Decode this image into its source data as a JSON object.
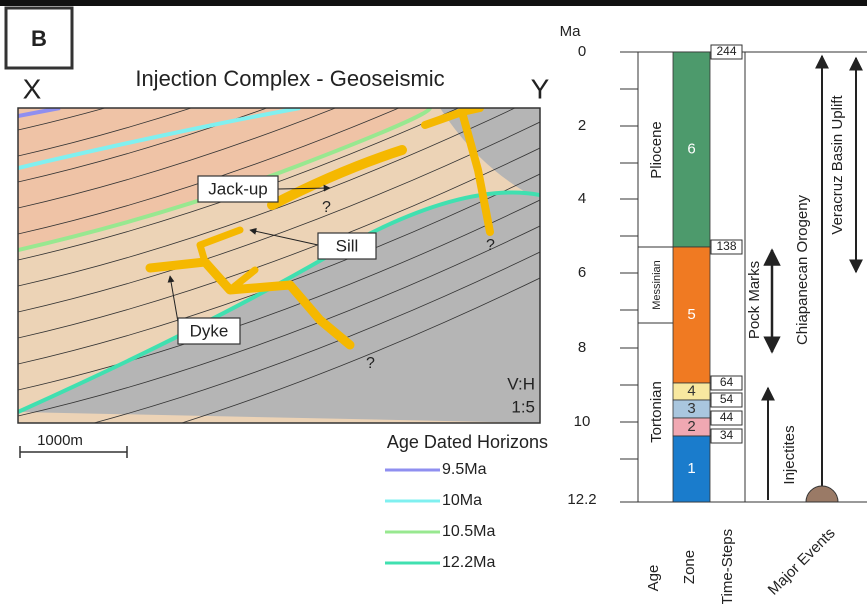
{
  "panel": "B",
  "title": "Injection Complex - Geoseismic",
  "section": {
    "left_end": "X",
    "right_end": "Y",
    "labels": {
      "jackup": "Jack-up",
      "sill": "Sill",
      "dyke": "Dyke"
    },
    "question_mark": "?",
    "ratio_label": "V:H",
    "ratio": "1:5",
    "scale_bar": "1000m"
  },
  "legend": {
    "title": "Age Dated Horizons",
    "items": [
      {
        "label": "9.5Ma",
        "color": "#8f8ff0"
      },
      {
        "label": "10Ma",
        "color": "#80f0f0"
      },
      {
        "label": "10.5Ma",
        "color": "#98e890"
      },
      {
        "label": "12.2Ma",
        "color": "#40e0b0"
      }
    ]
  },
  "timeline": {
    "unit": "Ma",
    "ticks": [
      "0",
      "2",
      "4",
      "6",
      "8",
      "10",
      "12.2"
    ],
    "ages": [
      "Pliocene",
      "Messinian",
      "Tortonian"
    ],
    "zones": [
      "6",
      "5",
      "4",
      "3",
      "2",
      "1"
    ],
    "time_steps": [
      "244",
      "138",
      "64",
      "54",
      "44",
      "34"
    ],
    "events": [
      "Pock Marks",
      "Chiapanecan Orogeny",
      "Veracruz Basin Uplift",
      "Injectites"
    ],
    "columns": [
      "Age",
      "Zone",
      "Time-Steps",
      "Major Events"
    ]
  }
}
